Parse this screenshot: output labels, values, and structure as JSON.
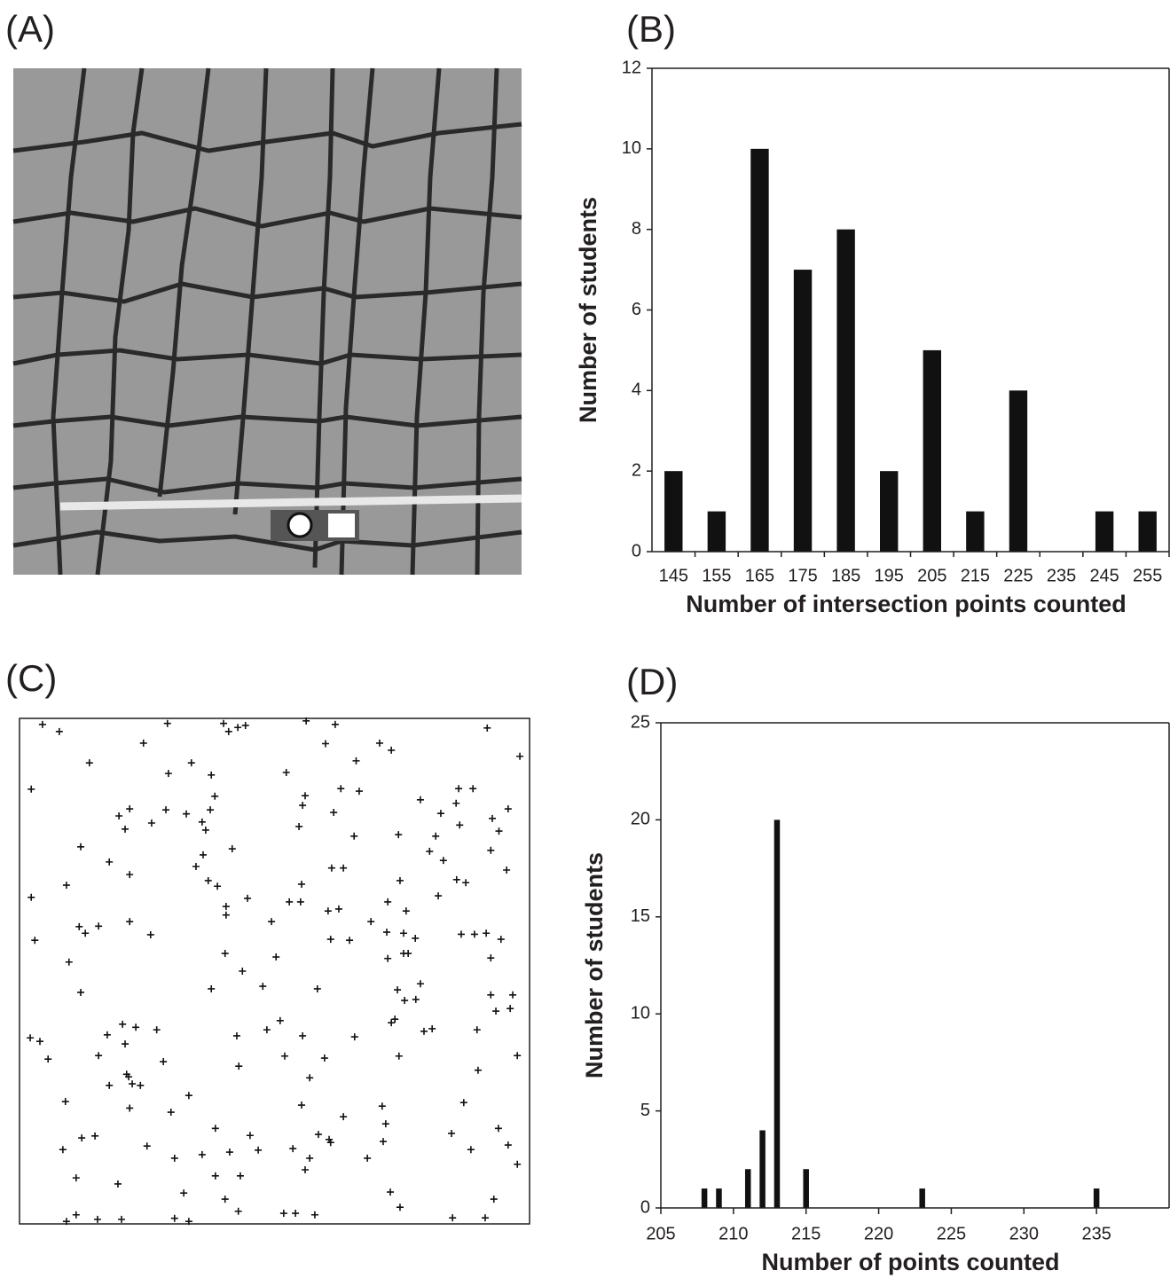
{
  "image_panel": {
    "label": "(A)"
  },
  "chart_data": [
    {
      "type": "bar",
      "label": "(B)",
      "categories": [
        "145",
        "155",
        "165",
        "175",
        "185",
        "195",
        "205",
        "215",
        "225",
        "235",
        "245",
        "255"
      ],
      "values": [
        2,
        1,
        10,
        7,
        8,
        2,
        5,
        1,
        4,
        0,
        1,
        1
      ],
      "color": "#111111",
      "ylim": [
        0,
        12
      ],
      "yticks": [
        0,
        2,
        4,
        6,
        8,
        10,
        12
      ],
      "x_label": "Number of intersection points counted",
      "y_label": "Number of students"
    },
    {
      "type": "scatter",
      "label": "(C)",
      "color": "#111111",
      "xlim": [
        0,
        100
      ],
      "ylim": [
        0,
        100
      ],
      "x": [
        4.5,
        7.8,
        29,
        40,
        41,
        42.8,
        44.3,
        56.2,
        61.9,
        91.7,
        98.1,
        13.7,
        24.3,
        60,
        70.6,
        72.9,
        66,
        33.7,
        29.2,
        37.6,
        52.3,
        2.3,
        63,
        66.6,
        56,
        78.6,
        86.1,
        88.9,
        38.3,
        21.6,
        19.5,
        28.7,
        32.7,
        37.4,
        61.6,
        55.5,
        82.6,
        85.6,
        95.8,
        92.7,
        20.7,
        25.9,
        35.8,
        36.5,
        54.8,
        86.3,
        94,
        74.3,
        81.6,
        65.6,
        12,
        41.7,
        36,
        80.4,
        92.4,
        17.6,
        34.6,
        61.2,
        63.5,
        83.1,
        21.6,
        95.5,
        9.2,
        37,
        38.8,
        55.3,
        74.6,
        85.7,
        87.5,
        2.3,
        44.7,
        52.9,
        55.1,
        72.2,
        82.1,
        40.5,
        40.5,
        60.5,
        62.6,
        75.8,
        49.4,
        68.9,
        21.6,
        11.7,
        12.9,
        15.5,
        25.7,
        3,
        72,
        75.3,
        77.6,
        86.6,
        89.2,
        91.5,
        94.4,
        61,
        64.7,
        40.3,
        50.3,
        72.2,
        75.3,
        76.2,
        92.4,
        9.7,
        43.7,
        12,
        37.6,
        47.7,
        58.4,
        74.1,
        78.6,
        92.4,
        96.7,
        75.5,
        77.7,
        93.4,
        96.2,
        20.2,
        22.8,
        51.1,
        73.6,
        72.9,
        2.1,
        4,
        17.2,
        20.7,
        26.9,
        42.6,
        48.5,
        55.5,
        65.7,
        79.3,
        80.9,
        89.7,
        5.6,
        15.5,
        28.2,
        43,
        52,
        59.8,
        74.4,
        97.6,
        89.9,
        21,
        56.9,
        21.4,
        22.1,
        23.7,
        17.6,
        33.2,
        9,
        87.1,
        21.6,
        55.3,
        71.1,
        29.7,
        63.5,
        71.8,
        38.4,
        58.6,
        14.8,
        12.2,
        45.2,
        60.7,
        61,
        84.7,
        93.9,
        71.3,
        8.5,
        25,
        53.6,
        35.8,
        41.2,
        46.8,
        30.4,
        56.9,
        68.2,
        88.5,
        95.8,
        97.6,
        11.1,
        38.4,
        43.3,
        56,
        19.3,
        32.2,
        72.7,
        93,
        40.3,
        74.6,
        42.9,
        11.1,
        15.3,
        20,
        30.4,
        33.2,
        9.2,
        51.8,
        54.1,
        57.9,
        84.9,
        91.3
      ],
      "y": [
        98.8,
        97.4,
        99,
        99,
        97.4,
        98.2,
        98.6,
        99.5,
        98.8,
        98.1,
        92.5,
        91.2,
        95.1,
        95,
        95.1,
        93.7,
        91.6,
        91.2,
        89.1,
        88.8,
        89.3,
        86,
        86.1,
        85.6,
        84.7,
        83.9,
        86.1,
        86.1,
        84.6,
        82.1,
        80.7,
        81.9,
        81.1,
        81.9,
        81.4,
        82.8,
        81.2,
        83.2,
        82.1,
        80.2,
        78.1,
        79.3,
        79.5,
        77.9,
        78.6,
        78.9,
        77.7,
        77,
        76.7,
        76.7,
        74.6,
        74.2,
        73,
        73.7,
        73.9,
        71.6,
        70.7,
        70.4,
        70.4,
        71.9,
        69.1,
        70,
        67,
        67.9,
        66.8,
        67.2,
        67.9,
        68.1,
        67.5,
        64.6,
        64.4,
        63.7,
        63.7,
        63.7,
        64.9,
        62.8,
        61.1,
        61.9,
        62.3,
        61.9,
        59.8,
        59.8,
        59.8,
        58.8,
        57.5,
        58.9,
        57.2,
        56.1,
        57.7,
        57.5,
        56.5,
        57.3,
        57.3,
        57.5,
        56.3,
        56.3,
        56.1,
        53.5,
        52.8,
        52.5,
        53.5,
        53.5,
        52.6,
        51.8,
        50,
        45.8,
        46.5,
        47,
        46.5,
        46.3,
        47.5,
        45.3,
        45.3,
        44.2,
        44.4,
        42.1,
        42.6,
        39.5,
        38.9,
        40.2,
        40.5,
        39.8,
        36.8,
        36.1,
        37.4,
        35.6,
        38.4,
        37.2,
        38.4,
        37.2,
        37,
        38.1,
        38.6,
        38.4,
        32.6,
        33.3,
        32.1,
        31.2,
        33.2,
        32.8,
        33.2,
        33.3,
        30.4,
        29.6,
        28.9,
        29.1,
        27.7,
        27.4,
        27.4,
        25.4,
        24.2,
        24,
        22.9,
        23.5,
        23.3,
        22.1,
        21.2,
        19.8,
        18.9,
        17.7,
        17.4,
        17,
        17.5,
        16.7,
        16.1,
        17.9,
        18.9,
        16.3,
        14.7,
        15.4,
        14.9,
        13.7,
        14.2,
        14.6,
        13,
        13,
        13,
        14.7,
        15.6,
        11.8,
        9.1,
        9.5,
        9.5,
        10.7,
        7.9,
        6.1,
        6.3,
        4.9,
        4.9,
        3.3,
        2.5,
        1.8,
        0.9,
        0.9,
        1.1,
        0.5,
        0.5,
        2.1,
        2.1,
        1.8,
        1.2,
        1.2
      ]
    },
    {
      "type": "bar",
      "label": "(D)",
      "x": [
        208,
        209,
        211,
        212,
        213,
        215,
        223,
        235
      ],
      "values": [
        1,
        1,
        2,
        4,
        20,
        2,
        1,
        1
      ],
      "color": "#111111",
      "xlim": [
        205,
        240
      ],
      "xticks": [
        205,
        210,
        215,
        220,
        225,
        230,
        235
      ],
      "ylim": [
        0,
        25
      ],
      "yticks": [
        0,
        5,
        10,
        15,
        20,
        25
      ],
      "x_label": "Number of points counted",
      "y_label": "Number of students"
    }
  ]
}
